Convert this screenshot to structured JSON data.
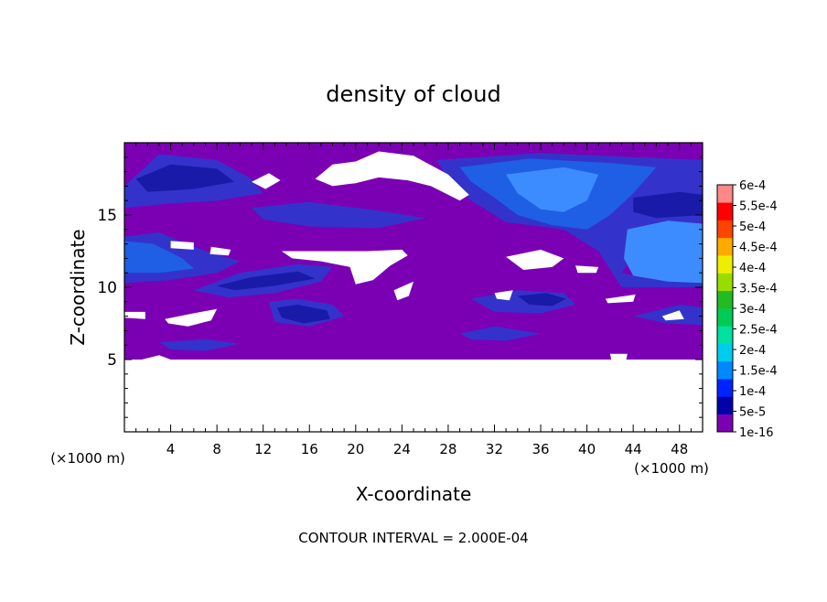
{
  "chart_data": {
    "type": "heatmap",
    "title": "density of cloud",
    "xlabel": "X-coordinate",
    "ylabel": "Z-coordinate",
    "x_unit_left": "(×1000 m)",
    "x_unit_right": "(×1000 m)",
    "xlim": [
      0,
      50
    ],
    "ylim": [
      0,
      20
    ],
    "x_ticks": [
      4,
      8,
      12,
      16,
      20,
      24,
      28,
      32,
      36,
      40,
      44,
      48
    ],
    "y_ticks": [
      5,
      10,
      15
    ],
    "footer": "CONTOUR INTERVAL = 2.000E-04",
    "colorbar": {
      "labels": [
        "1e-16",
        "5e-5",
        "1e-4",
        "1.5e-4",
        "2e-4",
        "2.5e-4",
        "3e-4",
        "3.5e-4",
        "4e-4",
        "4.5e-4",
        "5e-4",
        "5.5e-4",
        "6e-4"
      ],
      "colors": [
        "#7b00b4",
        "#0000aa",
        "#0022ff",
        "#0088ff",
        "#00ccee",
        "#00e0a0",
        "#00cc55",
        "#22bb22",
        "#99dd00",
        "#eeee00",
        "#ffaa00",
        "#ff4400",
        "#ff0000",
        "#ff8888"
      ]
    },
    "fill": {
      "background": "#7b00b4",
      "mid_blue": "#3333cc",
      "dark_blue": "#1a1aa8",
      "bright_blue": "#1f5fe6",
      "light_blue": "#3d8cff",
      "empty": "#ffffff"
    },
    "regions": [
      {
        "level": "empty",
        "poly": [
          [
            0,
            5
          ],
          [
            50,
            5
          ],
          [
            50,
            0
          ],
          [
            0,
            0
          ]
        ]
      },
      {
        "level": "mid_blue",
        "poly": [
          [
            0,
            17
          ],
          [
            3,
            19.2
          ],
          [
            8,
            18.8
          ],
          [
            11,
            17.5
          ],
          [
            12,
            16.5
          ],
          [
            8,
            16
          ],
          [
            4,
            15.8
          ],
          [
            0,
            15.5
          ]
        ]
      },
      {
        "level": "dark_blue",
        "poly": [
          [
            1,
            17.5
          ],
          [
            4,
            18.5
          ],
          [
            8,
            18.2
          ],
          [
            9.5,
            17.3
          ],
          [
            6,
            16.8
          ],
          [
            2,
            16.6
          ]
        ]
      },
      {
        "level": "mid_blue",
        "poly": [
          [
            0,
            13.5
          ],
          [
            3,
            13.8
          ],
          [
            7,
            12.5
          ],
          [
            10,
            11.8
          ],
          [
            8,
            11
          ],
          [
            4,
            10.5
          ],
          [
            0,
            10.3
          ]
        ]
      },
      {
        "level": "bright_blue",
        "poly": [
          [
            0,
            13.2
          ],
          [
            2.5,
            13
          ],
          [
            5,
            12
          ],
          [
            6,
            11.3
          ],
          [
            3,
            11
          ],
          [
            0,
            11
          ]
        ]
      },
      {
        "level": "mid_blue",
        "poly": [
          [
            6,
            9.8
          ],
          [
            10,
            11
          ],
          [
            15,
            11.6
          ],
          [
            18,
            11.4
          ],
          [
            17,
            10.4
          ],
          [
            13,
            9.6
          ],
          [
            9,
            9.3
          ]
        ]
      },
      {
        "level": "dark_blue",
        "poly": [
          [
            8,
            10.1
          ],
          [
            11,
            10.7
          ],
          [
            15,
            11.1
          ],
          [
            16.5,
            10.6
          ],
          [
            13,
            10.1
          ],
          [
            9.5,
            9.8
          ]
        ]
      },
      {
        "level": "mid_blue",
        "poly": [
          [
            11,
            15.5
          ],
          [
            16,
            15.9
          ],
          [
            22,
            15.3
          ],
          [
            26,
            14.8
          ],
          [
            22,
            14.1
          ],
          [
            16,
            14.2
          ],
          [
            12,
            14.7
          ]
        ]
      },
      {
        "level": "mid_blue",
        "poly": [
          [
            27,
            18.8
          ],
          [
            36,
            19.3
          ],
          [
            44,
            19
          ],
          [
            50,
            18.8
          ],
          [
            50,
            14.5
          ],
          [
            45,
            13.5
          ],
          [
            43,
            11
          ],
          [
            46,
            10.5
          ],
          [
            50,
            10.8
          ],
          [
            50,
            10
          ],
          [
            43,
            10
          ],
          [
            41,
            12.5
          ],
          [
            38,
            14
          ],
          [
            33,
            14.5
          ],
          [
            30,
            16
          ],
          [
            28,
            17.5
          ]
        ]
      },
      {
        "level": "bright_blue",
        "poly": [
          [
            29,
            18.3
          ],
          [
            35,
            18.9
          ],
          [
            42,
            18.6
          ],
          [
            46,
            18.3
          ],
          [
            44,
            16.5
          ],
          [
            42,
            15
          ],
          [
            40,
            14
          ],
          [
            37,
            14.3
          ],
          [
            34,
            15
          ],
          [
            32,
            16.2
          ],
          [
            30,
            17.3
          ]
        ]
      },
      {
        "level": "light_blue",
        "poly": [
          [
            33,
            17.8
          ],
          [
            38,
            18.3
          ],
          [
            41,
            17.8
          ],
          [
            40,
            16
          ],
          [
            38,
            15.2
          ],
          [
            36,
            15.4
          ],
          [
            34,
            16.5
          ]
        ]
      },
      {
        "level": "dark_blue",
        "poly": [
          [
            44,
            16.2
          ],
          [
            48,
            16.6
          ],
          [
            50,
            16.4
          ],
          [
            50,
            15
          ],
          [
            46,
            14.8
          ],
          [
            44,
            15.2
          ]
        ]
      },
      {
        "level": "light_blue",
        "poly": [
          [
            43.5,
            14
          ],
          [
            47,
            14.6
          ],
          [
            50,
            14.4
          ],
          [
            50,
            10.3
          ],
          [
            47,
            10.4
          ],
          [
            44,
            10.8
          ],
          [
            43.2,
            12
          ]
        ]
      },
      {
        "level": "mid_blue",
        "poly": [
          [
            12.5,
            9
          ],
          [
            15,
            9.2
          ],
          [
            18,
            8.8
          ],
          [
            19,
            8
          ],
          [
            16,
            7.3
          ],
          [
            13,
            7.6
          ]
        ]
      },
      {
        "level": "dark_blue",
        "poly": [
          [
            13.2,
            8.6
          ],
          [
            15,
            8.8
          ],
          [
            17.5,
            8.4
          ],
          [
            17.8,
            7.8
          ],
          [
            15.5,
            7.5
          ],
          [
            13.6,
            7.9
          ]
        ]
      },
      {
        "level": "mid_blue",
        "poly": [
          [
            30,
            9.2
          ],
          [
            34,
            9.8
          ],
          [
            38,
            9.6
          ],
          [
            39,
            8.8
          ],
          [
            36,
            8.2
          ],
          [
            32,
            8.3
          ]
        ]
      },
      {
        "level": "dark_blue",
        "poly": [
          [
            34,
            9.4
          ],
          [
            36.5,
            9.6
          ],
          [
            38.2,
            9.2
          ],
          [
            37,
            8.7
          ],
          [
            35,
            8.8
          ]
        ]
      },
      {
        "level": "mid_blue",
        "poly": [
          [
            29,
            6.8
          ],
          [
            32,
            7.3
          ],
          [
            36,
            6.8
          ],
          [
            33,
            6.3
          ],
          [
            30,
            6.4
          ]
        ]
      },
      {
        "level": "mid_blue",
        "poly": [
          [
            3,
            6.2
          ],
          [
            7,
            6.4
          ],
          [
            10,
            6.1
          ],
          [
            7,
            5.6
          ],
          [
            4,
            5.7
          ]
        ]
      },
      {
        "level": "mid_blue",
        "poly": [
          [
            44,
            8
          ],
          [
            48,
            8.8
          ],
          [
            50,
            8.6
          ],
          [
            50,
            7.4
          ],
          [
            47,
            7.5
          ]
        ]
      },
      {
        "level": "empty",
        "poly": [
          [
            16.5,
            17.5
          ],
          [
            18,
            18.5
          ],
          [
            20,
            18.7
          ],
          [
            22,
            19.4
          ],
          [
            25,
            19.1
          ],
          [
            28,
            17.8
          ],
          [
            29.8,
            16.4
          ],
          [
            29,
            16
          ],
          [
            26.5,
            17
          ],
          [
            24.5,
            17.4
          ],
          [
            22,
            17.6
          ],
          [
            20,
            17.2
          ],
          [
            18,
            17
          ]
        ]
      },
      {
        "level": "empty",
        "poly": [
          [
            11,
            17.3
          ],
          [
            12.5,
            17.9
          ],
          [
            13.5,
            17.4
          ],
          [
            12.2,
            16.8
          ]
        ]
      },
      {
        "level": "empty",
        "poly": [
          [
            13.6,
            12.5
          ],
          [
            21,
            12.5
          ],
          [
            24,
            12.6
          ],
          [
            24.5,
            12.2
          ],
          [
            23,
            11.5
          ],
          [
            21.5,
            10.5
          ],
          [
            20,
            10.2
          ],
          [
            19.5,
            11.4
          ],
          [
            17,
            11.8
          ],
          [
            14.5,
            12
          ]
        ]
      },
      {
        "level": "empty",
        "poly": [
          [
            4,
            13.2
          ],
          [
            6,
            13.1
          ],
          [
            6,
            12.6
          ],
          [
            4,
            12.7
          ]
        ]
      },
      {
        "level": "empty",
        "poly": [
          [
            7.5,
            12.8
          ],
          [
            9.2,
            12.6
          ],
          [
            9,
            12.2
          ],
          [
            7.4,
            12.3
          ]
        ]
      },
      {
        "level": "empty",
        "poly": [
          [
            33,
            12.1
          ],
          [
            36,
            12.6
          ],
          [
            38,
            12
          ],
          [
            37,
            11.4
          ],
          [
            34.5,
            11.2
          ]
        ]
      },
      {
        "level": "empty",
        "poly": [
          [
            39,
            11.5
          ],
          [
            41,
            11.4
          ],
          [
            40.8,
            11
          ],
          [
            39.2,
            11
          ]
        ]
      },
      {
        "level": "empty",
        "poly": [
          [
            3.5,
            7.8
          ],
          [
            6,
            8.2
          ],
          [
            8,
            8.5
          ],
          [
            7.5,
            7.7
          ],
          [
            5.5,
            7.3
          ],
          [
            3.8,
            7.5
          ]
        ]
      },
      {
        "level": "empty",
        "poly": [
          [
            0,
            8.3
          ],
          [
            1.8,
            8.3
          ],
          [
            1.8,
            7.8
          ],
          [
            0,
            7.9
          ]
        ]
      },
      {
        "level": "empty",
        "poly": [
          [
            23.3,
            9.8
          ],
          [
            25,
            10.4
          ],
          [
            24.6,
            9.4
          ],
          [
            23.6,
            9.1
          ]
        ]
      },
      {
        "level": "empty",
        "poly": [
          [
            32,
            9.6
          ],
          [
            33.6,
            9.8
          ],
          [
            33.3,
            9.1
          ],
          [
            32.2,
            9.2
          ]
        ]
      },
      {
        "level": "empty",
        "poly": [
          [
            41.6,
            9.2
          ],
          [
            44.2,
            9.5
          ],
          [
            44,
            9
          ],
          [
            41.8,
            8.9
          ]
        ]
      },
      {
        "level": "empty",
        "poly": [
          [
            46.5,
            8
          ],
          [
            48,
            8.4
          ],
          [
            48.4,
            7.8
          ],
          [
            46.8,
            7.7
          ]
        ]
      },
      {
        "level": "empty",
        "poly": [
          [
            1.5,
            5
          ],
          [
            3,
            5.3
          ],
          [
            4,
            5
          ],
          [
            2.2,
            4.9
          ]
        ]
      },
      {
        "level": "empty",
        "poly": [
          [
            42,
            5.4
          ],
          [
            43.5,
            5.4
          ],
          [
            43.4,
            5
          ],
          [
            42.1,
            5
          ]
        ]
      }
    ]
  }
}
